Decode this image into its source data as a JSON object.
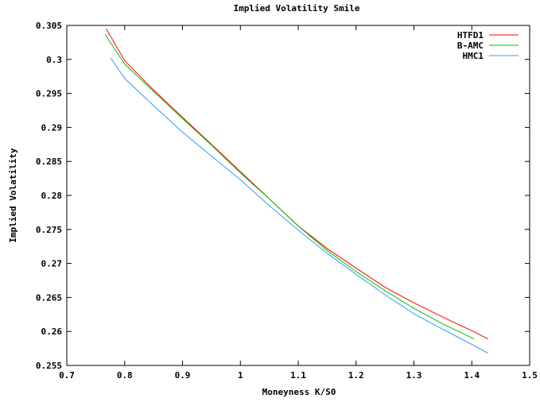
{
  "chart_data": {
    "type": "line",
    "title": "Implied Volatility Smile",
    "xlabel": "Moneyness K/S0",
    "ylabel": "Implied Volatility",
    "xlim": [
      0.7,
      1.5
    ],
    "ylim": [
      0.255,
      0.305
    ],
    "xticks": [
      "0.7",
      "0.8",
      "0.9",
      "1",
      "1.1",
      "1.2",
      "1.3",
      "1.4",
      "1.5"
    ],
    "yticks": [
      "0.255",
      "0.26",
      "0.265",
      "0.27",
      "0.275",
      "0.28",
      "0.285",
      "0.29",
      "0.295",
      "0.3",
      "0.305"
    ],
    "grid": false,
    "legend_position": "top-right",
    "series": [
      {
        "name": "HTFD1",
        "color": "#ff0000",
        "x": [
          0.768,
          0.8,
          0.85,
          0.9,
          0.95,
          1.0,
          1.05,
          1.1,
          1.15,
          1.2,
          1.25,
          1.3,
          1.35,
          1.4,
          1.428
        ],
        "y": [
          0.3045,
          0.2998,
          0.2955,
          0.2915,
          0.2875,
          0.2835,
          0.2795,
          0.2755,
          0.2722,
          0.2693,
          0.2665,
          0.2642,
          0.2621,
          0.2601,
          0.2589
        ]
      },
      {
        "name": "B-AMC",
        "color": "#00c000",
        "x": [
          0.766,
          0.8,
          0.85,
          0.9,
          0.95,
          1.0,
          1.05,
          1.1,
          1.15,
          1.2,
          1.25,
          1.3,
          1.35,
          1.404
        ],
        "y": [
          0.3037,
          0.2993,
          0.2953,
          0.2913,
          0.2874,
          0.2833,
          0.2795,
          0.2755,
          0.2719,
          0.2688,
          0.266,
          0.2634,
          0.2611,
          0.2589
        ]
      },
      {
        "name": "HMC1",
        "color": "#3399ff",
        "x": [
          0.776,
          0.8,
          0.85,
          0.9,
          0.95,
          1.0,
          1.05,
          1.1,
          1.15,
          1.2,
          1.25,
          1.3,
          1.35,
          1.4,
          1.428
        ],
        "y": [
          0.3002,
          0.2972,
          0.2932,
          0.2893,
          0.2858,
          0.2823,
          0.2785,
          0.2749,
          0.2715,
          0.2684,
          0.2654,
          0.2626,
          0.2603,
          0.2581,
          0.2568
        ]
      }
    ]
  }
}
